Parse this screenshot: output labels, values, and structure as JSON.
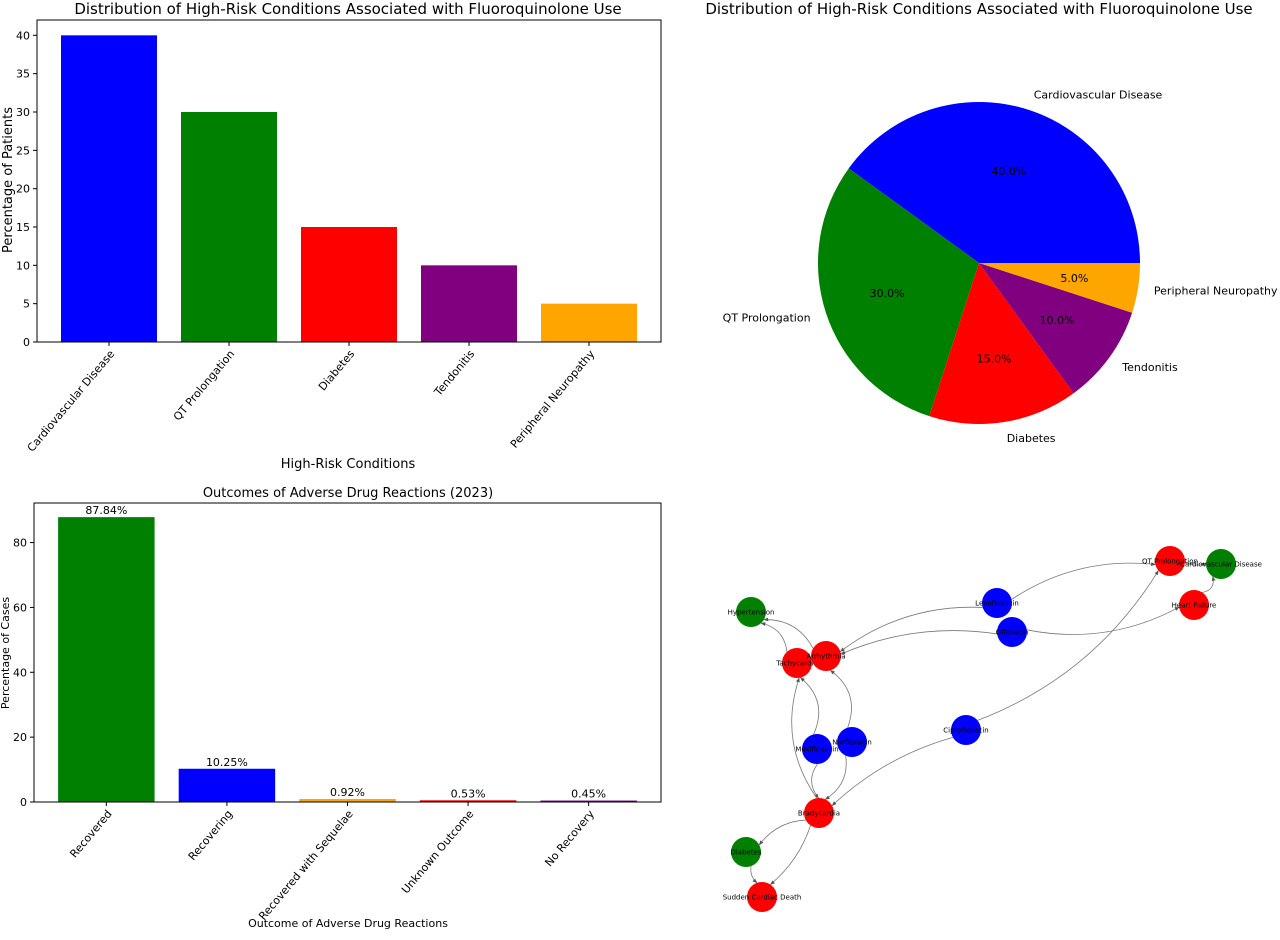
{
  "chart_data": [
    {
      "type": "bar",
      "title": "Distribution of High-Risk Conditions Associated with Fluoroquinolone Use",
      "xlabel": "High-Risk Conditions",
      "ylabel": "Percentage of Patients",
      "categories": [
        "Cardiovascular Disease",
        "QT Prolongation",
        "Diabetes",
        "Tendonitis",
        "Peripheral Neuropathy"
      ],
      "values": [
        40,
        30,
        15,
        10,
        5
      ],
      "colors": [
        "#0000ff",
        "#008000",
        "#ff0000",
        "#800080",
        "#ffa500"
      ],
      "ylim": [
        0,
        42
      ],
      "yticks": [
        0,
        5,
        10,
        15,
        20,
        25,
        30,
        35,
        40
      ],
      "grid": false
    },
    {
      "type": "pie",
      "title": "Distribution of High-Risk Conditions Associated with Fluoroquinolone Use",
      "labels": [
        "Cardiovascular Disease",
        "QT Prolongation",
        "Diabetes",
        "Tendonitis",
        "Peripheral Neuropathy"
      ],
      "values": [
        40,
        30,
        15,
        10,
        5
      ],
      "pct_labels": [
        "40.0%",
        "30.0%",
        "15.0%",
        "10.0%",
        "5.0%"
      ],
      "colors": [
        "#0000ff",
        "#008000",
        "#ff0000",
        "#800080",
        "#ffa500"
      ]
    },
    {
      "type": "bar",
      "title": "Outcomes of Adverse Drug Reactions (2023)",
      "xlabel": "Outcome of Adverse Drug Reactions",
      "ylabel": "Percentage of Cases",
      "categories": [
        "Recovered",
        "Recovering",
        "Recovered with Sequelae",
        "Unknown Outcome",
        "No Recovery"
      ],
      "values": [
        87.84,
        10.25,
        0.92,
        0.53,
        0.45
      ],
      "value_labels": [
        "87.84%",
        "10.25%",
        "0.92%",
        "0.53%",
        "0.45%"
      ],
      "colors": [
        "#008000",
        "#0000ff",
        "#ffa500",
        "#ff0000",
        "#800080"
      ],
      "ylim": [
        0,
        92.2
      ],
      "yticks": [
        0,
        20,
        40,
        60,
        80
      ],
      "grid": false
    },
    {
      "type": "network",
      "nodes": [
        {
          "id": "Hypertension",
          "label": "Hypertension",
          "color": "#008000"
        },
        {
          "id": "Tachycardia",
          "label": "Tachycardia",
          "color": "#ff0000"
        },
        {
          "id": "Arrhythmia",
          "label": "Arrhythmia",
          "color": "#ff0000"
        },
        {
          "id": "Levofloxacin",
          "label": "Levofloxacin",
          "color": "#0000ff"
        },
        {
          "id": "Ofloxacin",
          "label": "Ofloxacin",
          "color": "#0000ff"
        },
        {
          "id": "QT Prolongation",
          "label": "QT Prolongation",
          "color": "#ff0000"
        },
        {
          "id": "Cardiovascular Disease",
          "label": "Cardiovascular Disease",
          "color": "#008000"
        },
        {
          "id": "Heart Failure",
          "label": "Heart Failure",
          "color": "#ff0000"
        },
        {
          "id": "Moxifloxacin",
          "label": "Moxifloxacin",
          "color": "#0000ff"
        },
        {
          "id": "Norfloxacin",
          "label": "Norfloxacin",
          "color": "#0000ff"
        },
        {
          "id": "Ciprofloxacin",
          "label": "Ciprofloxacin",
          "color": "#0000ff"
        },
        {
          "id": "Bradycardia",
          "label": "Bradycardia",
          "color": "#ff0000"
        },
        {
          "id": "Diabetes",
          "label": "Diabetes",
          "color": "#008000"
        },
        {
          "id": "Sudden Cardiac Death",
          "label": "Sudden Cardiac Death",
          "color": "#ff0000"
        }
      ],
      "edges": [
        [
          "Levofloxacin",
          "QT Prolongation"
        ],
        [
          "Levofloxacin",
          "Arrhythmia"
        ],
        [
          "Ofloxacin",
          "Arrhythmia"
        ],
        [
          "Ofloxacin",
          "Heart Failure"
        ],
        [
          "Arrhythmia",
          "Hypertension"
        ],
        [
          "Tachycardia",
          "Hypertension"
        ],
        [
          "Moxifloxacin",
          "Tachycardia"
        ],
        [
          "Moxifloxacin",
          "Bradycardia"
        ],
        [
          "Norfloxacin",
          "Arrhythmia"
        ],
        [
          "Norfloxacin",
          "Bradycardia"
        ],
        [
          "Ciprofloxacin",
          "Bradycardia"
        ],
        [
          "Ciprofloxacin",
          "QT Prolongation"
        ],
        [
          "Bradycardia",
          "Tachycardia"
        ],
        [
          "Bradycardia",
          "Diabetes"
        ],
        [
          "Bradycardia",
          "Sudden Cardiac Death"
        ],
        [
          "Diabetes",
          "Sudden Cardiac Death"
        ],
        [
          "QT Prolongation",
          "Cardiovascular Disease"
        ],
        [
          "Heart Failure",
          "Cardiovascular Disease"
        ]
      ]
    }
  ]
}
